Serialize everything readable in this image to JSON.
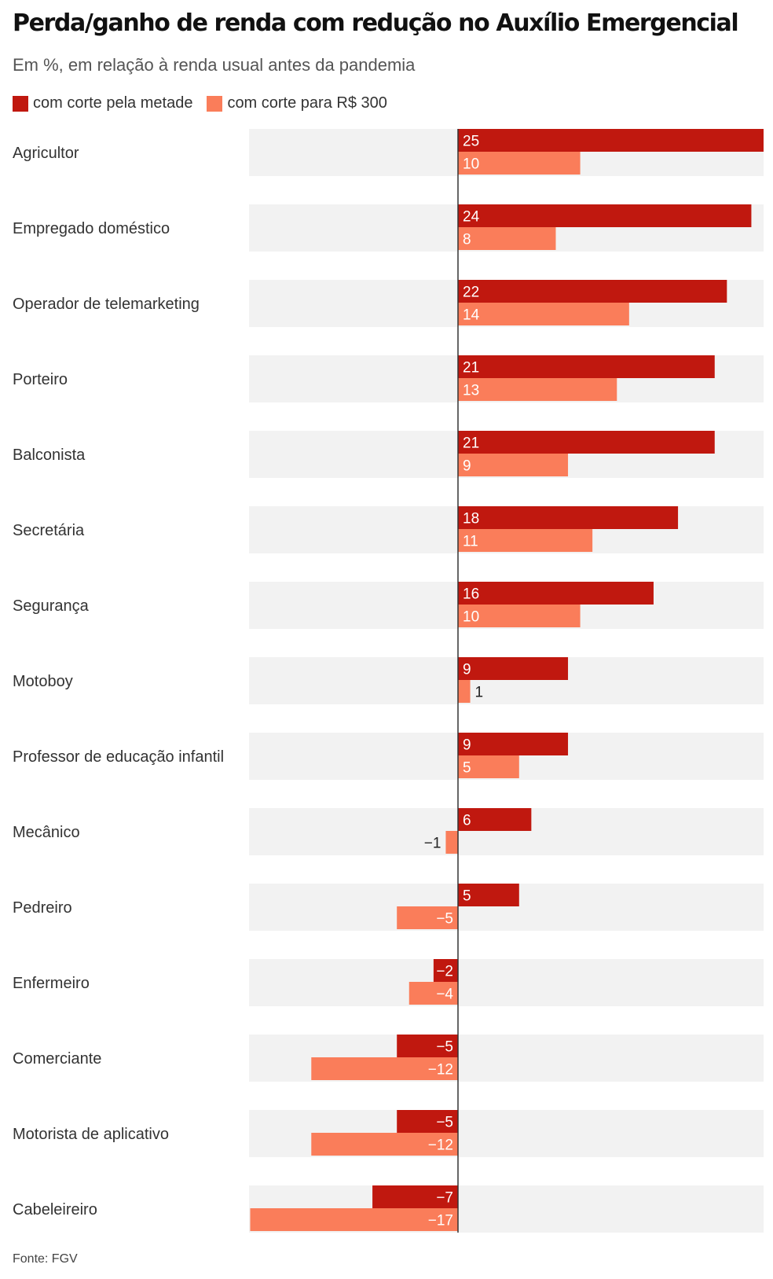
{
  "chart_data": {
    "type": "bar",
    "orientation": "horizontal",
    "title": "Perda/ganho de renda com redução no Auxílio Emergencial",
    "subtitle": "Em %, em relação à renda usual antes da pandemia",
    "categories": [
      "Agricultor",
      "Empregado doméstico",
      "Operador de telemarketing",
      "Porteiro",
      "Balconista",
      "Secretária",
      "Segurança",
      "Motoboy",
      "Professor de educação infantil",
      "Mecânico",
      "Pedreiro",
      "Enfermeiro",
      "Comerciante",
      "Motorista de aplicativo",
      "Cabeleireiro"
    ],
    "series": [
      {
        "name": "com corte pela metade",
        "color": "#c0180f",
        "values": [
          25,
          24,
          22,
          21,
          21,
          18,
          16,
          9,
          9,
          6,
          5,
          -2,
          -5,
          -5,
          -7
        ]
      },
      {
        "name": "com corte para R$ 300",
        "color": "#fa7d5a",
        "values": [
          10,
          8,
          14,
          13,
          9,
          11,
          10,
          1,
          5,
          -1,
          -5,
          -4,
          -12,
          -12,
          -17
        ]
      }
    ],
    "value_labels": [
      [
        "25",
        "24",
        "22",
        "21",
        "21",
        "18",
        "16",
        "9",
        "9",
        "6",
        "5",
        "−2",
        "−5",
        "−5",
        "−7"
      ],
      [
        "10",
        "8",
        "14",
        "13",
        "9",
        "11",
        "10",
        "1",
        "5",
        "−1",
        "−5",
        "−4",
        "−12",
        "−12",
        "−17"
      ]
    ],
    "xlim": [
      -17,
      25
    ],
    "grid": false,
    "legend_position": "top-left",
    "row_background": "#f2f2f2",
    "zero_line_color": "#333333"
  },
  "source": "Fonte: FGV"
}
